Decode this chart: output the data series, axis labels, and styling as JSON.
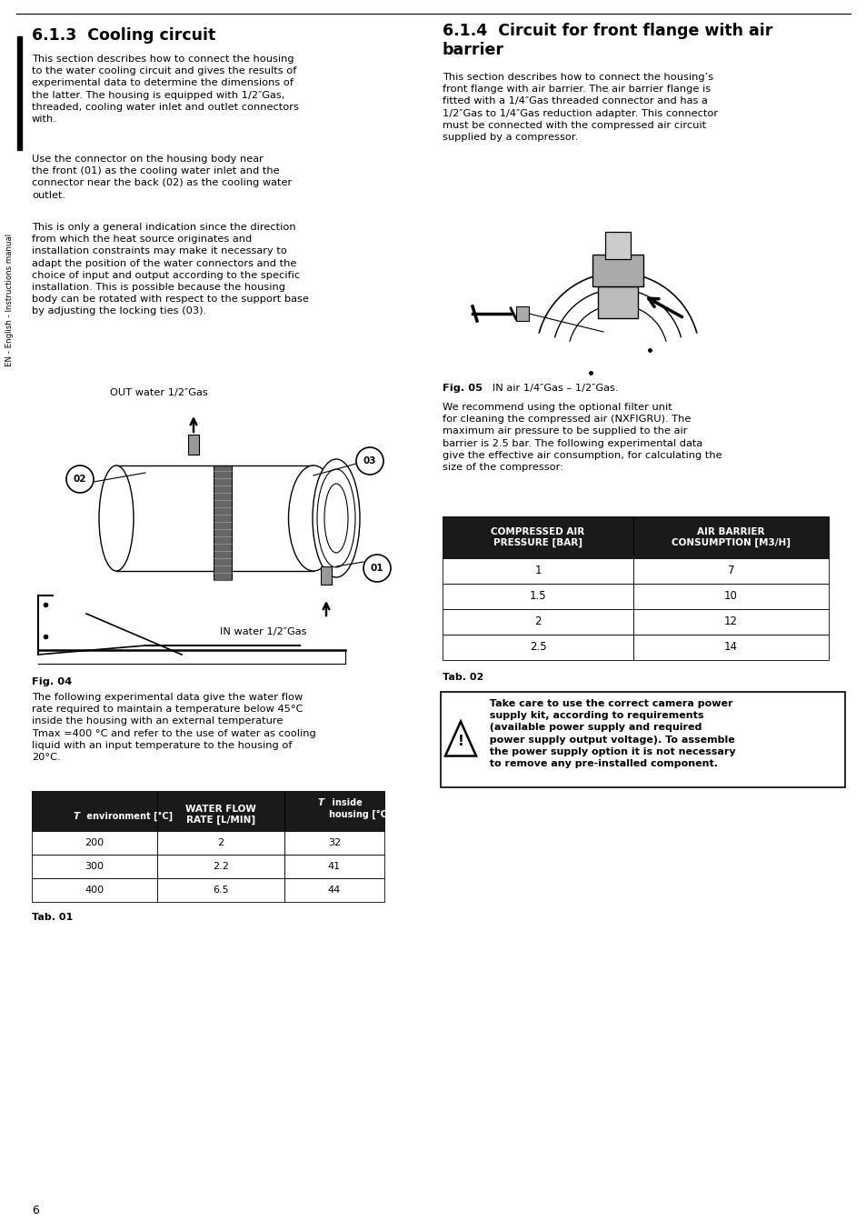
{
  "page_bg": "#ffffff",
  "section_left_title": "6.1.3  Cooling circuit",
  "section_right_title": "6.1.4  Circuit for front flange with air\nbarrier",
  "left_para1": "This section describes how to connect the housing\nto the water cooling circuit and gives the results of\nexperimental data to determine the dimensions of\nthe latter. The housing is equipped with 1/2″Gas,\nthreaded, cooling water inlet and outlet connectors\nwith.",
  "left_para2": "Use the connector on the housing body near\nthe front (01) as the cooling water inlet and the\nconnector near the back (02) as the cooling water\noutlet.",
  "left_para3": "This is only a general indication since the direction\nfrom which the heat source originates and\ninstallation constraints may make it necessary to\nadapt the position of the water connectors and the\nchoice of input and output according to the specific\ninstallation. This is possible because the housing\nbody can be rotated with respect to the support base\nby adjusting the locking ties (03).",
  "out_water_label": "OUT water 1/2″Gas",
  "in_water_label": "IN water 1/2″Gas",
  "fig04_label": "Fig. 04",
  "left_para4": "The following experimental data give the water flow\nrate required to maintain a temperature below 45°C\ninside the housing with an external temperature\nTmax =400 °C and refer to the use of water as cooling\nliquid with an input temperature to the housing of\n20°C.",
  "table1_header0": "T",
  "table1_header0b": " environment [°C]",
  "table1_header1a": "WATER FLOW",
  "table1_header1b": "RATE [L/MIN]",
  "table1_header2a": "T",
  "table1_header2b": " inside",
  "table1_header2c": "housing [°C]",
  "table1_data": [
    [
      "200",
      "2",
      "32"
    ],
    [
      "300",
      "2.2",
      "41"
    ],
    [
      "400",
      "6.5",
      "44"
    ]
  ],
  "table1_label": "Tab. 01",
  "right_para1": "This section describes how to connect the housing’s\nfront flange with air barrier. The air barrier flange is\nfitted with a 1/4″Gas threaded connector and has a\n1/2″Gas to 1/4″Gas reduction adapter. This connector\nmust be connected with the compressed air circuit\nsupplied by a compressor.",
  "fig05_label": "Fig. 05",
  "fig05_caption": "   IN air 1/4″Gas – 1/2″Gas.",
  "right_para2": "We recommend using the optional filter unit\nfor cleaning the compressed air (NXFIGRU). The\nmaximum air pressure to be supplied to the air\nbarrier is 2.5 bar. The following experimental data\ngive the effective air consumption, for calculating the\nsize of the compressor:",
  "table2_header0": "COMPRESSED AIR\nPRESSURE [BAR]",
  "table2_header1": "AIR BARRIER\nCONSUMPTION [M3/H]",
  "table2_data": [
    [
      "1",
      "7"
    ],
    [
      "1.5",
      "10"
    ],
    [
      "2",
      "12"
    ],
    [
      "2.5",
      "14"
    ]
  ],
  "table2_label": "Tab. 02",
  "warning_text": "  Take care to use the correct camera power\n  supply kit, according to requirements\n  (available power supply and required\n  power supply output voltage). To assemble\n  the power supply option it is not necessary\n  to remove any pre-installed component.",
  "page_number": "6",
  "sidebar_text": "EN - English - Instructions manual"
}
